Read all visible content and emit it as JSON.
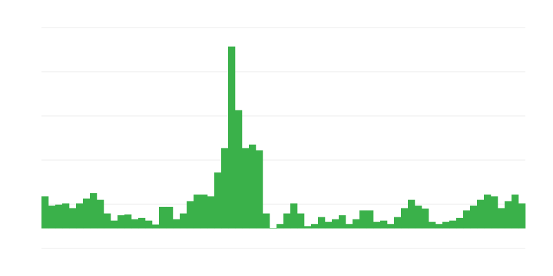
{
  "chart_data": {
    "type": "bar",
    "title": "",
    "xlabel": "",
    "ylabel": "",
    "ylim": [
      -0.45,
      4.55
    ],
    "grid": true,
    "grid_step": 1,
    "bar_color": "#3ab14a",
    "grid_color": "#ebebeb",
    "values": [
      0.73,
      0.52,
      0.54,
      0.57,
      0.46,
      0.57,
      0.68,
      0.8,
      0.65,
      0.34,
      0.18,
      0.3,
      0.32,
      0.21,
      0.24,
      0.18,
      0.09,
      0.49,
      0.49,
      0.21,
      0.34,
      0.62,
      0.77,
      0.77,
      0.73,
      1.27,
      1.82,
      4.12,
      2.68,
      1.82,
      1.9,
      1.77,
      0.34,
      -0.01,
      0.1,
      0.34,
      0.57,
      0.34,
      0.05,
      0.1,
      0.26,
      0.15,
      0.21,
      0.3,
      0.1,
      0.21,
      0.41,
      0.41,
      0.15,
      0.18,
      0.1,
      0.26,
      0.46,
      0.65,
      0.52,
      0.45,
      0.15,
      0.1,
      0.15,
      0.18,
      0.24,
      0.41,
      0.52,
      0.65,
      0.77,
      0.73,
      0.46,
      0.62,
      0.77,
      0.57
    ]
  }
}
